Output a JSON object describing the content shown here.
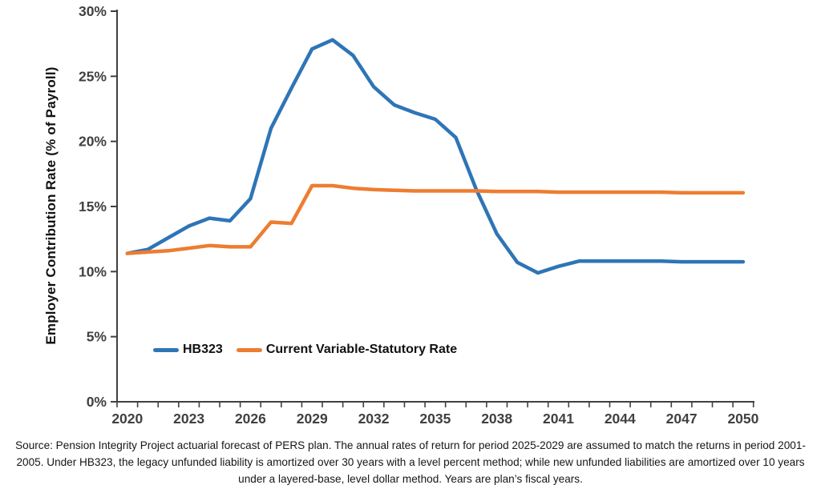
{
  "chart_data": {
    "type": "line",
    "title": "",
    "xlabel": "",
    "ylabel": "Employer Contribution Rate (% of Payroll)",
    "grid": false,
    "legend_position": "inside-bottom-left",
    "xlim": [
      2020,
      2050
    ],
    "ylim": [
      0,
      30
    ],
    "y_ticks": [
      0,
      5,
      10,
      15,
      20,
      25,
      30
    ],
    "y_tick_labels": [
      "0%",
      "5%",
      "10%",
      "15%",
      "20%",
      "25%",
      "30%"
    ],
    "x_labeled_ticks": [
      2020,
      2023,
      2026,
      2029,
      2032,
      2035,
      2038,
      2041,
      2044,
      2047,
      2050
    ],
    "x": [
      2020,
      2021,
      2022,
      2023,
      2024,
      2025,
      2026,
      2027,
      2028,
      2029,
      2030,
      2031,
      2032,
      2033,
      2034,
      2035,
      2036,
      2037,
      2038,
      2039,
      2040,
      2041,
      2042,
      2043,
      2044,
      2045,
      2046,
      2047,
      2048,
      2049,
      2050
    ],
    "series": [
      {
        "name": "HB323",
        "color": "#2E75B6",
        "values": [
          11.4,
          11.7,
          12.6,
          13.5,
          14.1,
          13.9,
          15.6,
          21.0,
          24.1,
          27.1,
          27.8,
          26.6,
          24.2,
          22.8,
          22.2,
          21.7,
          20.3,
          16.3,
          12.9,
          10.7,
          9.9,
          10.4,
          10.8,
          10.8,
          10.8,
          10.8,
          10.8,
          10.75,
          10.75,
          10.75,
          10.75
        ]
      },
      {
        "name": "Current Variable-Statutory Rate",
        "color": "#ED7D31",
        "values": [
          11.4,
          11.5,
          11.6,
          11.8,
          12.0,
          11.9,
          11.9,
          13.8,
          13.7,
          16.6,
          16.6,
          16.4,
          16.3,
          16.25,
          16.2,
          16.2,
          16.2,
          16.2,
          16.15,
          16.15,
          16.15,
          16.1,
          16.1,
          16.1,
          16.1,
          16.1,
          16.1,
          16.05,
          16.05,
          16.05,
          16.05
        ]
      }
    ],
    "axis_color": "#404040",
    "tick_label_color": "#404040"
  },
  "caption": "Source: Pension Integrity Project actuarial forecast of PERS plan. The annual rates of return for period 2025-2029 are assumed to match the returns in period 2001-2005. Under HB323, the legacy unfunded liability is amortized over 30 years with a level percent method; while new unfunded liabilities are amortized over 10 years under a layered-base, level dollar method. Years are plan’s fiscal years."
}
